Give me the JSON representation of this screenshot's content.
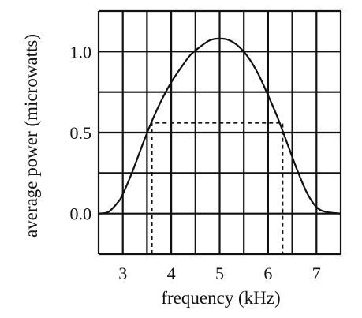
{
  "chart_data": {
    "type": "line",
    "title": "",
    "xlabel": "frequency (kHz)",
    "ylabel": "average power (microwatts)",
    "xlim": [
      2.5,
      7.5
    ],
    "ylim": [
      -0.25,
      1.25
    ],
    "x_ticks": [
      {
        "value": 3,
        "label": "3"
      },
      {
        "value": 4,
        "label": "4"
      },
      {
        "value": 5,
        "label": "5"
      },
      {
        "value": 6,
        "label": "6"
      },
      {
        "value": 7,
        "label": "7"
      }
    ],
    "y_ticks": [
      {
        "value": 0.0,
        "label": "0.0"
      },
      {
        "value": 0.5,
        "label": "0.5"
      },
      {
        "value": 1.0,
        "label": "1.0"
      }
    ],
    "x_grid": [
      2.5,
      3.0,
      3.5,
      4.0,
      4.5,
      5.0,
      5.5,
      6.0,
      6.5,
      7.0,
      7.5
    ],
    "y_grid": [
      -0.25,
      0.0,
      0.25,
      0.5,
      0.75,
      1.0,
      1.25
    ],
    "grid": true,
    "series": [
      {
        "x": [
          2.5,
          2.7,
          2.9,
          3.0,
          3.2,
          3.4,
          3.6,
          3.8,
          4.0,
          4.2,
          4.4,
          4.6,
          4.8,
          5.0,
          5.2,
          5.4,
          5.6,
          5.8,
          6.0,
          6.2,
          6.4,
          6.6,
          6.8,
          7.0,
          7.2,
          7.5
        ],
        "y": [
          0.0,
          0.01,
          0.07,
          0.12,
          0.26,
          0.42,
          0.57,
          0.7,
          0.81,
          0.9,
          0.98,
          1.03,
          1.07,
          1.08,
          1.07,
          1.03,
          0.96,
          0.86,
          0.73,
          0.59,
          0.43,
          0.27,
          0.13,
          0.04,
          0.01,
          0.0
        ],
        "color": "#111111",
        "style": "solid"
      }
    ],
    "annotation": {
      "type": "dashed-bracket",
      "x_left": 3.6,
      "x_right": 6.3,
      "y_level": 0.56,
      "color": "#111111"
    }
  }
}
